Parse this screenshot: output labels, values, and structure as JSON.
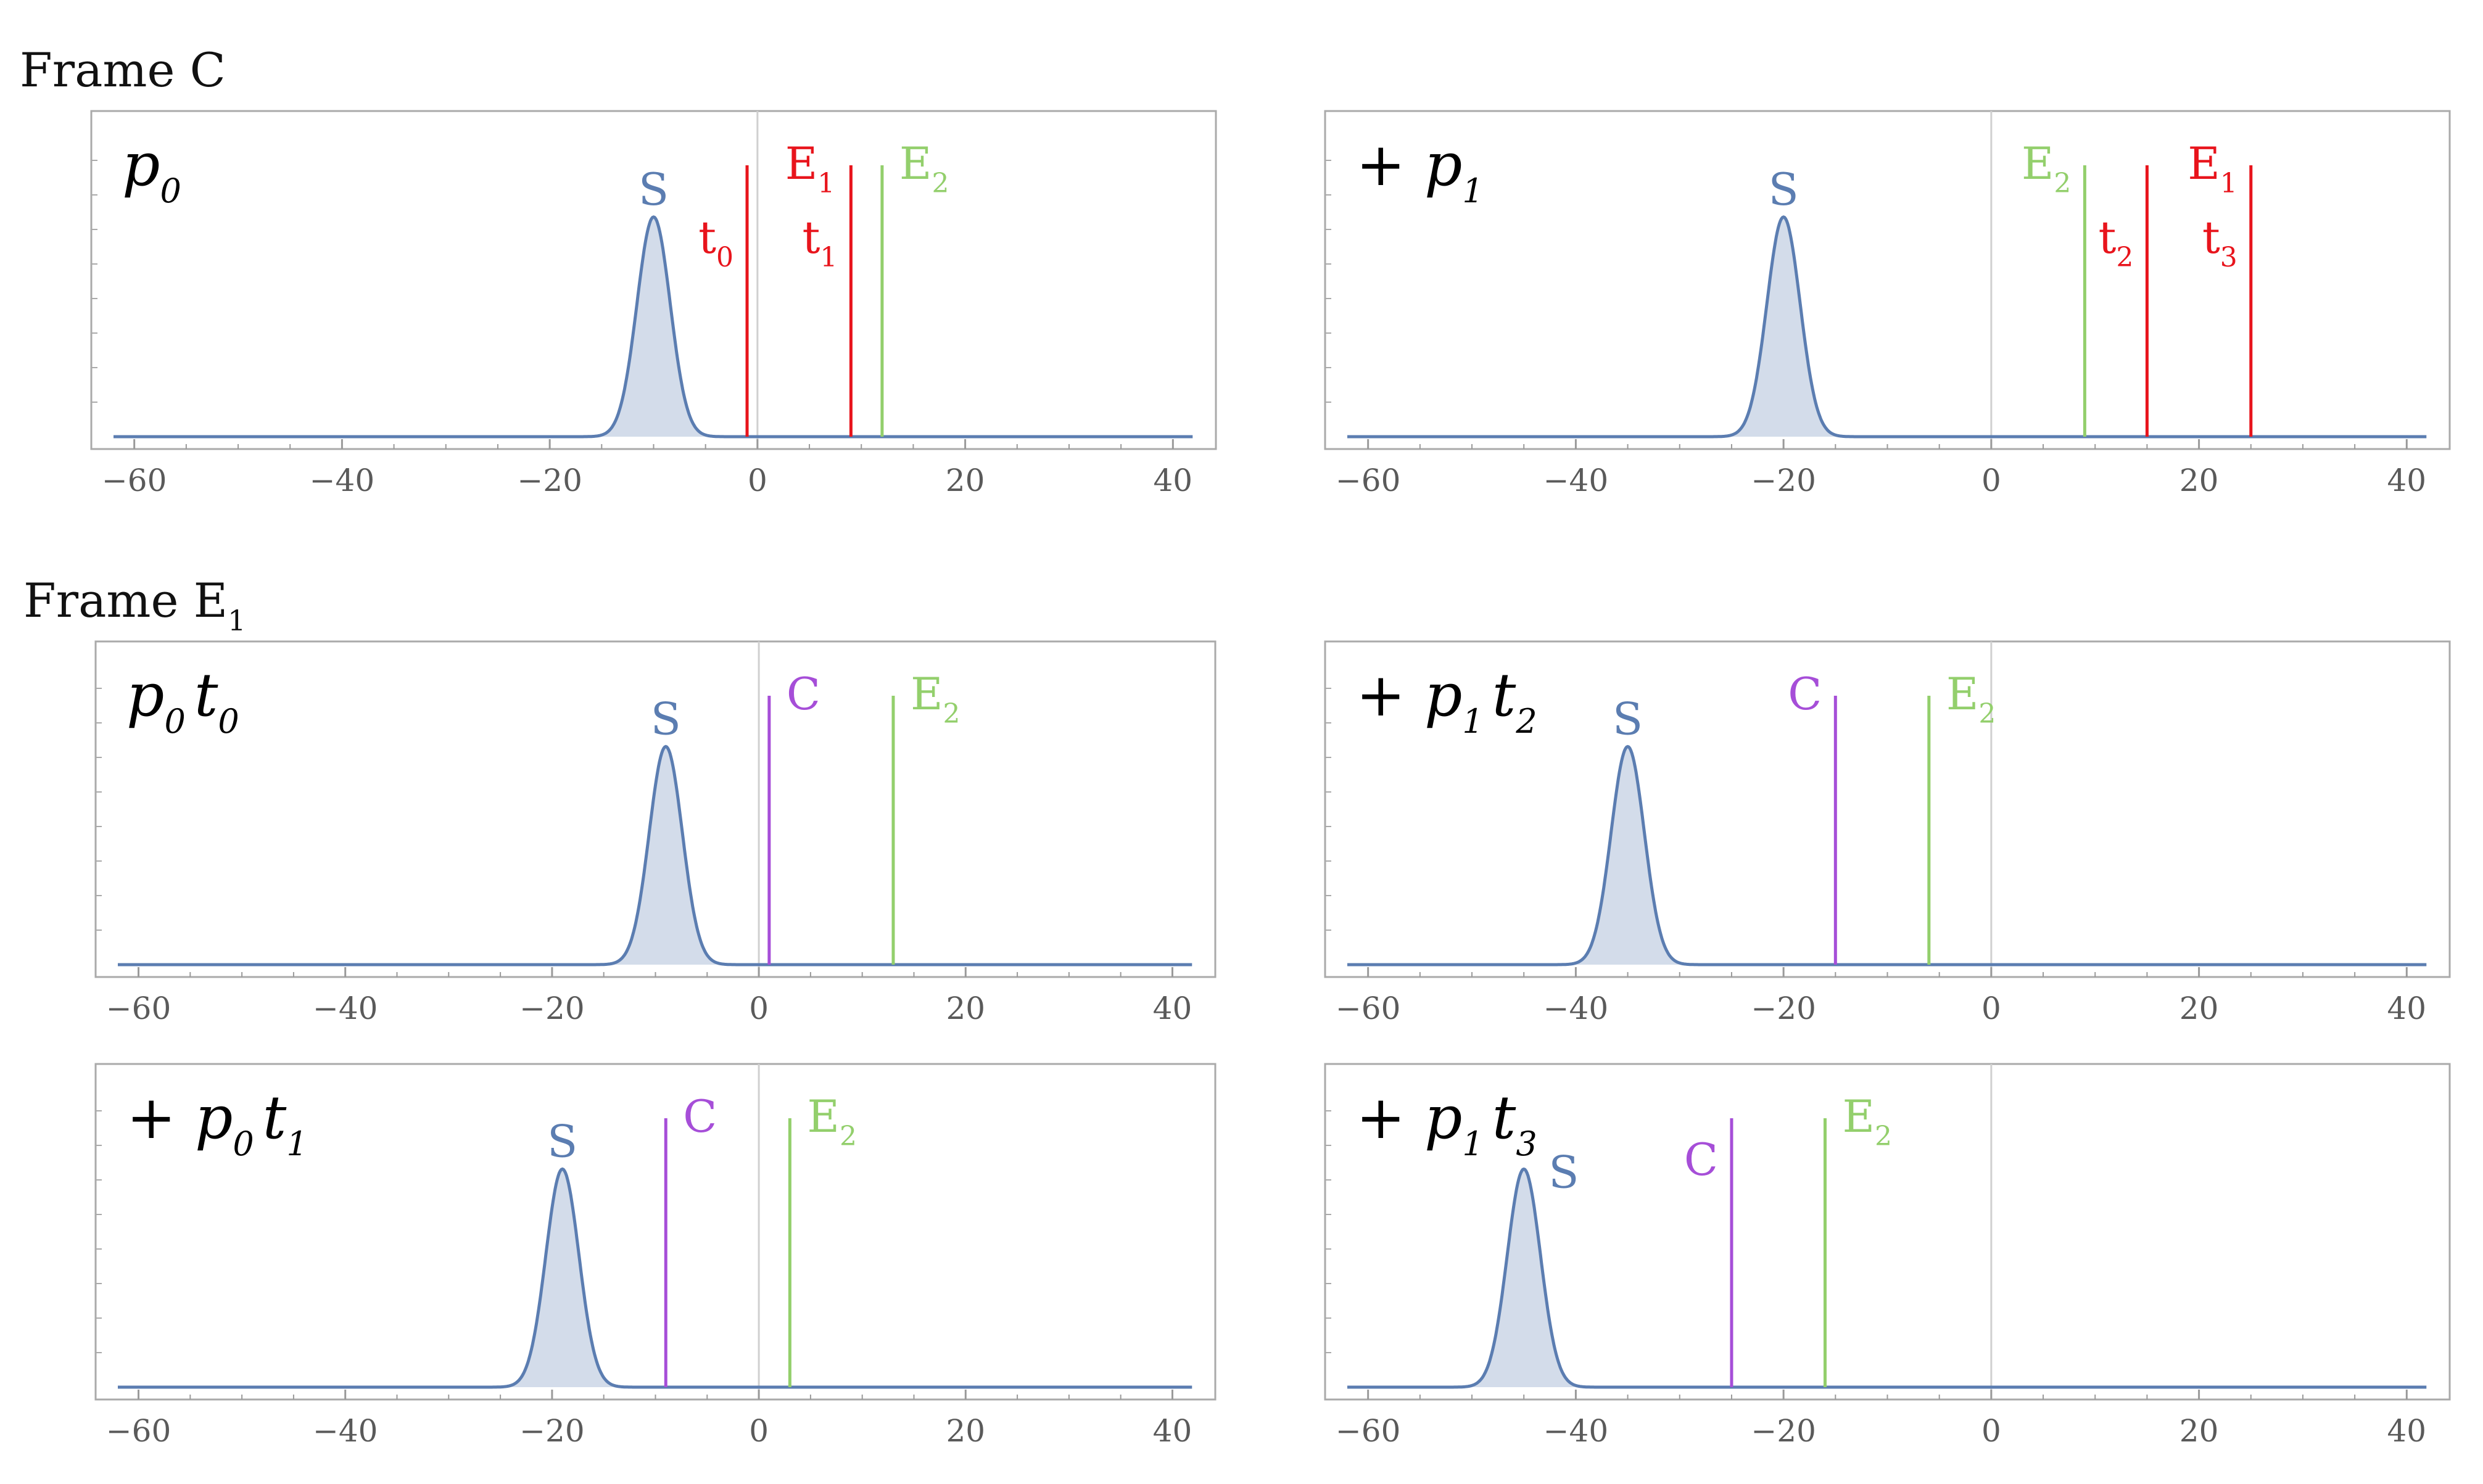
{
  "sections": [
    {
      "title": "Frame C",
      "title_sub": ""
    },
    {
      "title": "Frame E",
      "title_sub": "1"
    }
  ],
  "colors": {
    "S": "#5b7db1",
    "S_fill": "#d3dcea",
    "E1": "#e8141c",
    "t": "#e8141c",
    "E2": "#93cf6c",
    "C": "#a64ed8",
    "axis": "#9a9a9a",
    "zero_line": "#d0d0d0",
    "frame": "#aaaaaa"
  },
  "chart_data": [
    {
      "type": "line",
      "section": 0,
      "column": 0,
      "term": "p",
      "term_sub": "0",
      "term_parts": [
        {
          "sign": "",
          "base": "p",
          "sub": "0"
        }
      ],
      "xlim": [
        -62,
        42
      ],
      "xticks": [
        -60,
        -40,
        -20,
        0,
        20,
        40
      ],
      "peaks": [
        {
          "label": "S",
          "center": -10,
          "label_pos": "above"
        }
      ],
      "markers": [
        {
          "label": "t",
          "sub": "0",
          "x": -1,
          "color_key": "t",
          "label_side": "left",
          "label_level": "low"
        },
        {
          "label": "E",
          "sub": "1",
          "x": 1,
          "color_key": "E1",
          "label_side": "right",
          "label_level": "high",
          "no_line": true
        },
        {
          "label": "t",
          "sub": "1",
          "x": 9,
          "color_key": "t",
          "label_side": "left",
          "label_level": "low"
        },
        {
          "label": "E",
          "sub": "2",
          "x": 12,
          "color_key": "E2",
          "label_side": "right",
          "label_level": "high"
        }
      ]
    },
    {
      "type": "line",
      "section": 0,
      "column": 1,
      "term_parts": [
        {
          "sign": "+",
          "base": "p",
          "sub": "1"
        }
      ],
      "xlim": [
        -62,
        42
      ],
      "xticks": [
        -60,
        -40,
        -20,
        0,
        20,
        40
      ],
      "peaks": [
        {
          "label": "S",
          "center": -20,
          "label_pos": "above"
        }
      ],
      "markers": [
        {
          "label": "E",
          "sub": "2",
          "x": 9,
          "color_key": "E2",
          "label_side": "left",
          "label_level": "high"
        },
        {
          "label": "t",
          "sub": "2",
          "x": 15,
          "color_key": "t",
          "label_side": "left",
          "label_level": "low"
        },
        {
          "label": "E",
          "sub": "1",
          "x": 25,
          "color_key": "E1",
          "label_side": "left",
          "label_level": "high"
        },
        {
          "label": "t",
          "sub": "3",
          "x": 25,
          "color_key": "t",
          "label_side": "left",
          "label_level": "low",
          "no_line": true
        }
      ]
    },
    {
      "type": "line",
      "section": 1,
      "column": 0,
      "term_parts": [
        {
          "sign": "",
          "base": "p",
          "sub": "0"
        },
        {
          "sign": "",
          "base": "t",
          "sub": "0"
        }
      ],
      "xlim": [
        -62,
        42
      ],
      "xticks": [
        -60,
        -40,
        -20,
        0,
        20,
        40
      ],
      "peaks": [
        {
          "label": "S",
          "center": -9,
          "label_pos": "above"
        }
      ],
      "markers": [
        {
          "label": "C",
          "sub": "",
          "x": 1,
          "color_key": "C",
          "label_side": "right",
          "label_level": "high"
        },
        {
          "label": "E",
          "sub": "2",
          "x": 13,
          "color_key": "E2",
          "label_side": "right",
          "label_level": "high"
        }
      ]
    },
    {
      "type": "line",
      "section": 1,
      "column": 1,
      "term_parts": [
        {
          "sign": "+",
          "base": "p",
          "sub": "1"
        },
        {
          "sign": "",
          "base": "t",
          "sub": "2"
        }
      ],
      "xlim": [
        -62,
        42
      ],
      "xticks": [
        -60,
        -40,
        -20,
        0,
        20,
        40
      ],
      "peaks": [
        {
          "label": "S",
          "center": -35,
          "label_pos": "above"
        }
      ],
      "markers": [
        {
          "label": "C",
          "sub": "",
          "x": -15,
          "color_key": "C",
          "label_side": "left",
          "label_level": "high"
        },
        {
          "label": "E",
          "sub": "2",
          "x": -6,
          "color_key": "E2",
          "label_side": "right",
          "label_level": "high"
        }
      ]
    },
    {
      "type": "line",
      "section": 1,
      "column": 0,
      "row": 1,
      "term_parts": [
        {
          "sign": "+",
          "base": "p",
          "sub": "0"
        },
        {
          "sign": "",
          "base": "t",
          "sub": "1"
        }
      ],
      "xlim": [
        -62,
        42
      ],
      "xticks": [
        -60,
        -40,
        -20,
        0,
        20,
        40
      ],
      "peaks": [
        {
          "label": "S",
          "center": -19,
          "label_pos": "above"
        }
      ],
      "markers": [
        {
          "label": "C",
          "sub": "",
          "x": -9,
          "color_key": "C",
          "label_side": "right",
          "label_level": "high"
        },
        {
          "label": "E",
          "sub": "2",
          "x": 3,
          "color_key": "E2",
          "label_side": "right",
          "label_level": "high"
        }
      ]
    },
    {
      "type": "line",
      "section": 1,
      "column": 1,
      "row": 1,
      "term_parts": [
        {
          "sign": "+",
          "base": "p",
          "sub": "1"
        },
        {
          "sign": "",
          "base": "t",
          "sub": "3"
        }
      ],
      "xlim": [
        -62,
        42
      ],
      "xticks": [
        -60,
        -40,
        -20,
        0,
        20,
        40
      ],
      "peaks": [
        {
          "label": "S",
          "center": -45,
          "label_pos": "right"
        }
      ],
      "markers": [
        {
          "label": "C",
          "sub": "",
          "x": -25,
          "color_key": "C",
          "label_side": "left",
          "label_level": "mid"
        },
        {
          "label": "E",
          "sub": "2",
          "x": -16,
          "color_key": "E2",
          "label_side": "right",
          "label_level": "high"
        }
      ]
    }
  ]
}
